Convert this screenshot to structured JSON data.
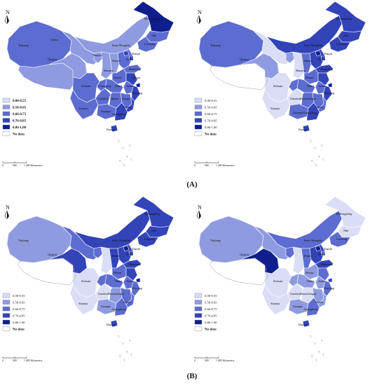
{
  "north_label": "N",
  "legend": {
    "classes": [
      "0.00-0.55",
      "0.56-0.65",
      "0.66-0.75",
      "0.76-0.85",
      "0.86-1.00"
    ],
    "colors": [
      "#d9ddf5",
      "#8f9be0",
      "#5d6cd0",
      "#3343b8",
      "#0e1e8c"
    ],
    "no_data_label": "No data",
    "no_data_color": "#ffffff"
  },
  "scale_bar": {
    "ticks": [
      "0",
      "500"
    ],
    "end_label": "1 000 Kilometers"
  },
  "captions": {
    "a": "(A)",
    "b": "(B)"
  },
  "province_names": {
    "xinjiang": "Xinjiang",
    "gansu": "Gansu",
    "qinghai": "Qinghai",
    "inner_mongolia": "Inner Mongolia",
    "heilongjiang": "Heilongjiang",
    "jilin": "Jilin",
    "liaoning": "Liaoning",
    "hebei": "Hebei",
    "tianjin": "Tianjin",
    "shanxi": "Shanxi",
    "shaanxi": "Shaanxi",
    "shandong": "Shandong",
    "henan": "Henan",
    "anhui": "Anhui",
    "jiangsu": "Jiangsu",
    "hubei": "Hubei",
    "sichuan": "Sichuan",
    "chongqing": "Chongqing",
    "guizhou": "Guizhou",
    "hunan": "Hunan",
    "jiangxi": "Jiangxi",
    "zhejiang": "Zhejiang",
    "fujian": "Fujian",
    "yunnan": "Yunnan",
    "guangxi": "Guangxi",
    "guangdong": "Guangdong",
    "hainan": "Hainan",
    "ningxia": "Ningxia",
    "hunan_jiangxi": "HunanJiangxi",
    "guangxi_guangdong": "GuangxiGuangdong"
  },
  "panels": [
    {
      "id": "a-left",
      "legend_style": "bold",
      "legend_classes": [
        "0.00-0.55",
        "0.56-0.65",
        "0.66-0.75",
        "0.76-0.85",
        "0.86-1.00"
      ],
      "fill_class": {
        "xinjiang": 2,
        "tibet": 1,
        "qinghai": 1,
        "gansu": 1,
        "inner_mongolia": 1,
        "heilongjiang": 4,
        "jilin": 2,
        "liaoning": 2,
        "ningxia": 1,
        "shaanxi": 1,
        "shanxi": 1,
        "hebei": 2,
        "beijing": 3,
        "tianjin": 3,
        "shandong": 2,
        "henan": 2,
        "jiangsu": 3,
        "anhui": 2,
        "hubei": 2,
        "sichuan": 2,
        "chongqing": 2,
        "guizhou": 2,
        "yunnan": 2,
        "hunan": 2,
        "jiangxi": 2,
        "zhejiang": 3,
        "fujian": 3,
        "guangxi": 2,
        "guangdong": 3,
        "hainan": 3,
        "shanghai": 4
      },
      "labels": [
        "xinjiang",
        "gansu",
        "qinghai",
        "inner_mongolia",
        "jilin",
        "heilongjiang",
        "liaoning",
        "ningxia",
        "shanxi",
        "hebei",
        "tianjin",
        "shandong",
        "shaanxi",
        "henan",
        "sichuan",
        "chongqing",
        "hubei",
        "anhui",
        "jiangsu",
        "guizhou",
        "hunan",
        "jiangxi",
        "zhejiang",
        "yunnan",
        "fujian",
        "guangxi",
        "guangdong",
        "hainan"
      ]
    },
    {
      "id": "a-right",
      "legend_style": "normal",
      "legend_classes": [
        "0.00-0.55",
        "0.56-0.65",
        "0.66-0.75",
        "0.76-0.85",
        "0.86-1.00"
      ],
      "fill_class": {
        "xinjiang": 2,
        "tibet": null,
        "qinghai": 1,
        "gansu": 0,
        "inner_mongolia": 3,
        "heilongjiang": 3,
        "jilin": 3,
        "liaoning": 3,
        "ningxia": 1,
        "shaanxi": 0,
        "shanxi": 2,
        "hebei": 3,
        "beijing": 4,
        "tianjin": 3,
        "shandong": 3,
        "henan": 2,
        "jiangsu": 3,
        "anhui": 2,
        "hubei": 2,
        "sichuan": 0,
        "chongqing": 2,
        "guizhou": 0,
        "yunnan": 0,
        "hunan": 2,
        "jiangxi": 2,
        "zhejiang": 3,
        "fujian": 2,
        "guangxi": 2,
        "guangdong": 3,
        "hainan": 3,
        "shanghai": 4
      },
      "labels": [
        "xinjiang",
        "qinghai",
        "inner_mongolia",
        "heilongjiang",
        "jilin",
        "liaoning",
        "hebei",
        "tianjin",
        "shanxi",
        "shandong",
        "shaanxi",
        "henan",
        "anhui",
        "hubei",
        "sichuan",
        "zhejiang",
        "guizhou",
        "hunan_jiangxi",
        "fujian",
        "yunnan",
        "guangxi_guangdong",
        "hainan"
      ]
    },
    {
      "id": "b-left",
      "legend_style": "normal",
      "legend_classes": [
        "0.00-0.55",
        "0.56-0.65",
        "0.66-0.75",
        "0.76-0.85",
        "0.86-1.00"
      ],
      "fill_class": {
        "xinjiang": 1,
        "tibet": null,
        "qinghai": 3,
        "gansu": 2,
        "inner_mongolia": 3,
        "heilongjiang": 3,
        "jilin": 3,
        "liaoning": 3,
        "ningxia": 2,
        "shaanxi": 0,
        "shanxi": 3,
        "hebei": 3,
        "beijing": 4,
        "tianjin": 3,
        "shandong": 3,
        "henan": 2,
        "jiangsu": 3,
        "anhui": 2,
        "hubei": 2,
        "sichuan": 0,
        "chongqing": 2,
        "guizhou": 0,
        "yunnan": 0,
        "hunan": 1,
        "jiangxi": 2,
        "zhejiang": 2,
        "fujian": 2,
        "guangxi": 1,
        "guangdong": 2,
        "hainan": 3,
        "shanghai": 4
      },
      "labels": [
        "xinjiang",
        "qinghai",
        "inner_mongolia",
        "heilongjiang",
        "jilin",
        "liaoning",
        "hebei",
        "tianjin",
        "shanxi",
        "shandong",
        "henan",
        "anhui",
        "hubei",
        "sichuan",
        "zhejiang",
        "guizhou",
        "hunan_jiangxi",
        "fujian",
        "yunnan",
        "guangxi",
        "guangdong",
        "hainan"
      ]
    },
    {
      "id": "b-right",
      "legend_style": "normal",
      "legend_classes": [
        "0.00-0.55",
        "0.56-0.65",
        "0.66-0.75",
        "0.76-0.85",
        "0.86-1.00"
      ],
      "fill_class": {
        "xinjiang": 1,
        "tibet": null,
        "qinghai": 4,
        "gansu": 1,
        "inner_mongolia": 2,
        "heilongjiang": 0,
        "jilin": 0,
        "liaoning": 2,
        "ningxia": 2,
        "shaanxi": 0,
        "shanxi": 2,
        "hebei": 3,
        "beijing": 4,
        "tianjin": 2,
        "shandong": 3,
        "henan": 1,
        "jiangsu": 2,
        "anhui": 1,
        "hubei": 1,
        "sichuan": 0,
        "chongqing": 1,
        "guizhou": 0,
        "yunnan": 0,
        "hunan": 0,
        "jiangxi": 1,
        "zhejiang": 2,
        "fujian": 1,
        "guangxi": 1,
        "guangdong": 2,
        "hainan": 3,
        "shanghai": 3
      },
      "labels": [
        "xinjiang",
        "qinghai",
        "inner_mongolia",
        "heilongjiang",
        "jilin",
        "liaoning",
        "hebei",
        "tianjin",
        "shanxi",
        "shandong",
        "henan",
        "anhui",
        "hubei",
        "sichuan",
        "zhejiang",
        "guizhou",
        "hunan_jiangxi",
        "fujian",
        "yunnan",
        "guangxi",
        "guangdong",
        "hainan"
      ]
    }
  ]
}
